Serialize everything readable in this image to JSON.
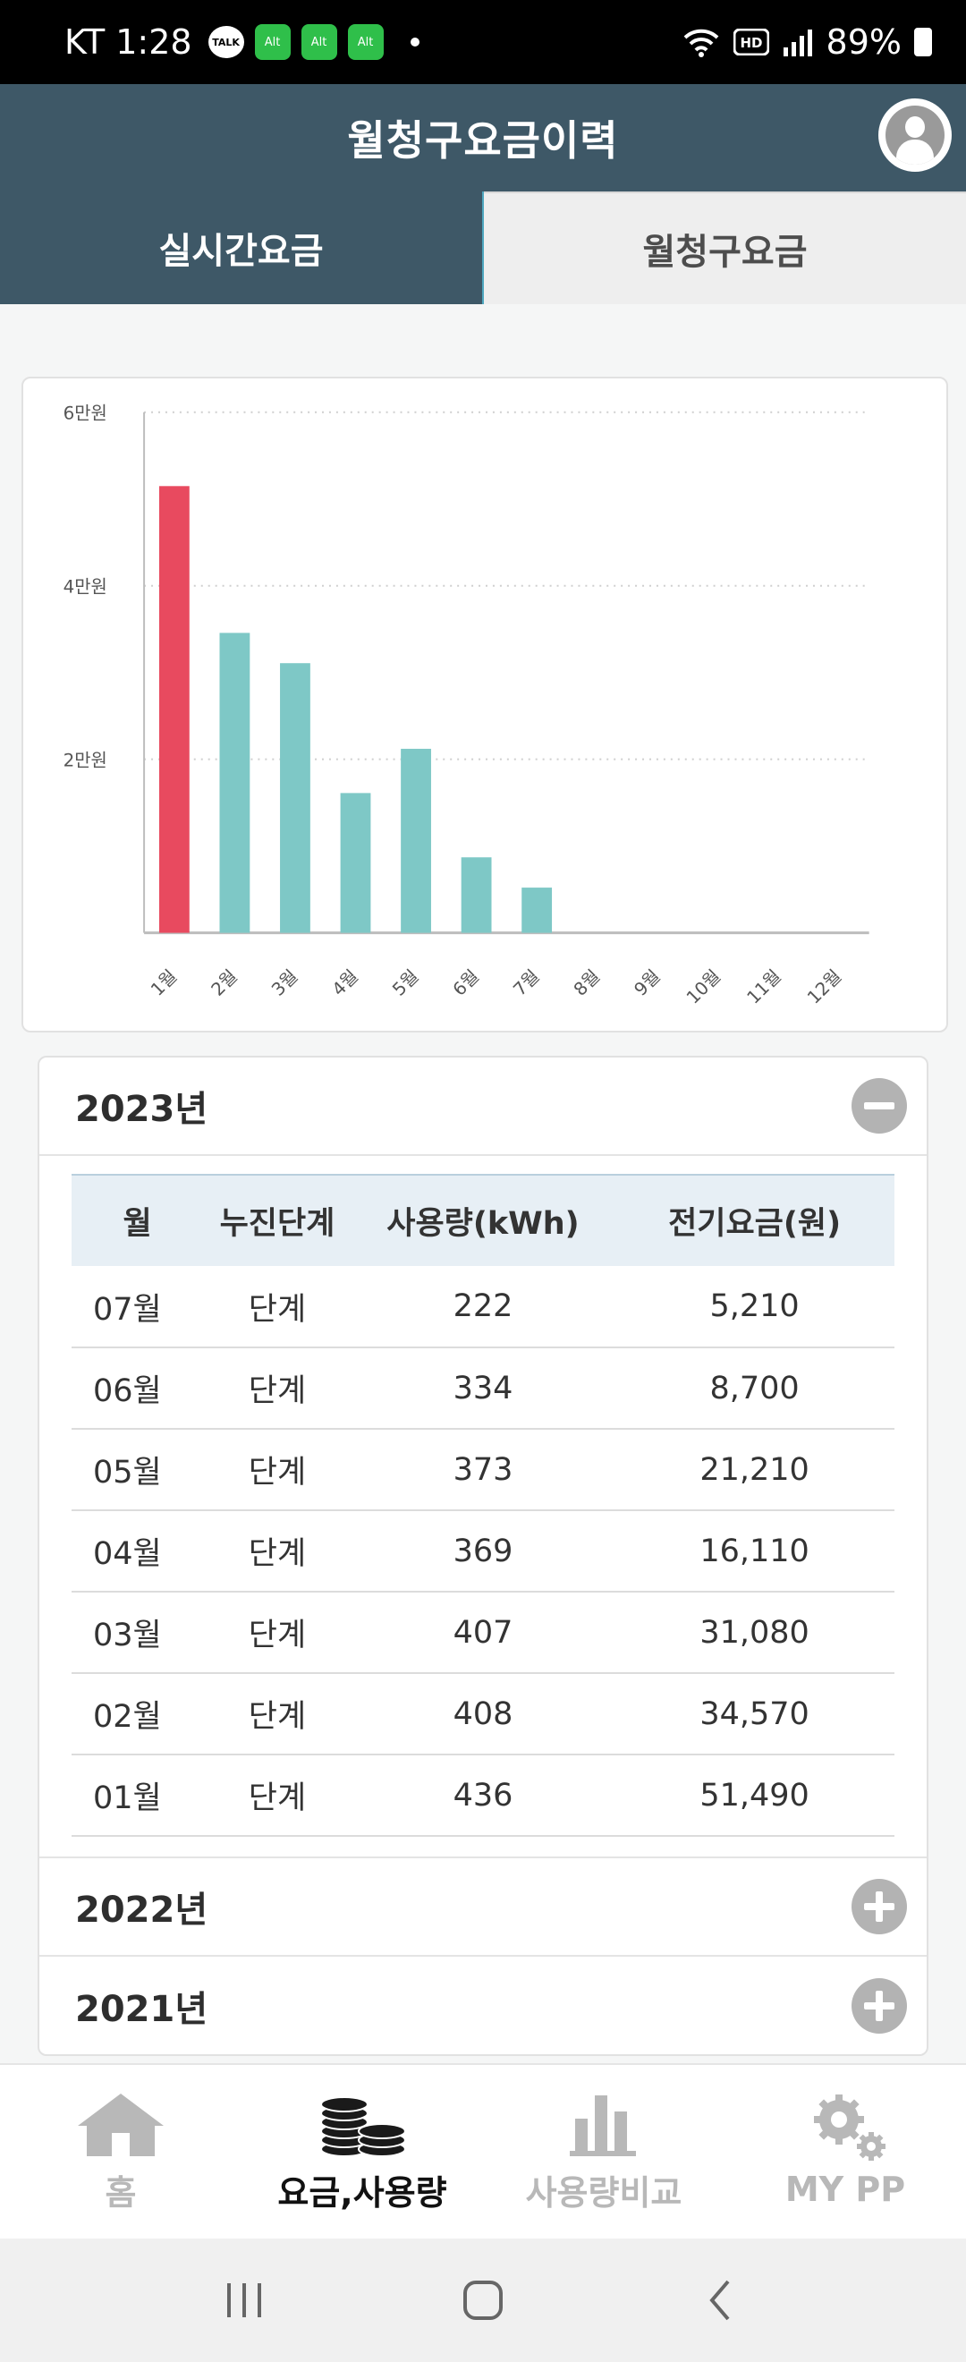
{
  "status_bar": {
    "carrier_time": "KT 1:28",
    "talk_label": "TALK",
    "notif_chip_label": "Alt",
    "battery": "89%"
  },
  "app_bar": {
    "title": "월청구요금이력"
  },
  "tabs": [
    {
      "label": "실시간요금",
      "active": true
    },
    {
      "label": "월청구요금",
      "active": false
    }
  ],
  "chart_data": {
    "type": "bar",
    "categories": [
      "1월",
      "2월",
      "3월",
      "4월",
      "5월",
      "6월",
      "7월",
      "8월",
      "9월",
      "10월",
      "11월",
      "12월"
    ],
    "values": [
      51490,
      34570,
      31080,
      16110,
      21210,
      8700,
      5210,
      null,
      null,
      null,
      null,
      null
    ],
    "ylim": [
      0,
      60000
    ],
    "yticks": [
      {
        "value": 20000,
        "label": "2만원"
      },
      {
        "value": 40000,
        "label": "4만원"
      },
      {
        "value": 60000,
        "label": "6만원"
      }
    ],
    "colors": {
      "highlight": "#e84a5f",
      "bar": "#7ec8c6"
    },
    "grid": true
  },
  "years": [
    {
      "label": "2023년",
      "expanded": true,
      "table": {
        "headers": [
          "월",
          "누진단계",
          "사용량(kWh)",
          "전기요금(원)"
        ],
        "rows": [
          [
            "07월",
            "단계",
            "222",
            "5,210"
          ],
          [
            "06월",
            "단계",
            "334",
            "8,700"
          ],
          [
            "05월",
            "단계",
            "373",
            "21,210"
          ],
          [
            "04월",
            "단계",
            "369",
            "16,110"
          ],
          [
            "03월",
            "단계",
            "407",
            "31,080"
          ],
          [
            "02월",
            "단계",
            "408",
            "34,570"
          ],
          [
            "01월",
            "단계",
            "436",
            "51,490"
          ]
        ]
      }
    },
    {
      "label": "2022년",
      "expanded": false
    },
    {
      "label": "2021년",
      "expanded": false
    }
  ],
  "bottom_nav": [
    {
      "label": "홈",
      "icon": "home-icon",
      "active": false
    },
    {
      "label": "요금,사용량",
      "icon": "coins-icon",
      "active": true
    },
    {
      "label": "사용량비교",
      "icon": "bar-chart-icon",
      "active": false
    },
    {
      "label": "MY PP",
      "icon": "gears-icon",
      "active": false
    }
  ]
}
